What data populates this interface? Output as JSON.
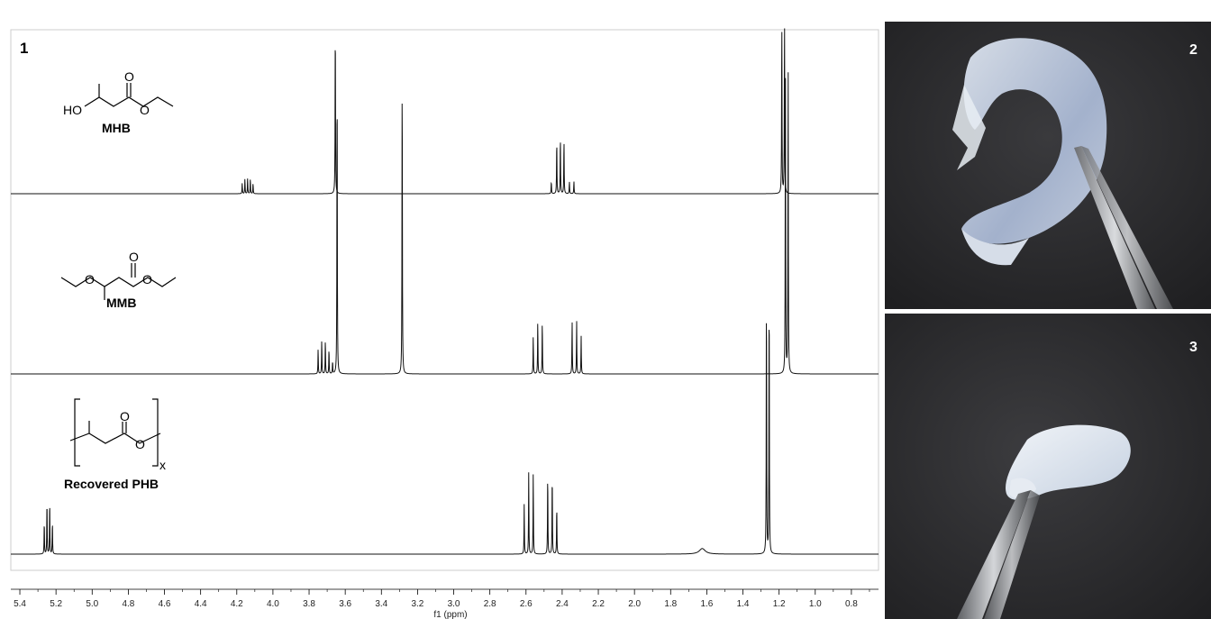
{
  "panel_labels": {
    "spectra": "1",
    "photo_top": "2",
    "photo_bottom": "3"
  },
  "structures": {
    "mhb": {
      "name": "MHB",
      "atoms": [
        "HO",
        "O",
        "O"
      ]
    },
    "mmb": {
      "name": "MMB",
      "atoms": [
        "O",
        "O",
        "O"
      ]
    },
    "phb": {
      "name": "Recovered PHB",
      "atoms": [
        "O",
        "O"
      ],
      "subscript": "x"
    }
  },
  "chart_data": {
    "type": "line",
    "xlabel": "f1 (ppm)",
    "xlim": [
      5.45,
      0.65
    ],
    "x_reversed": true,
    "ticks": [
      "5.4",
      "5.2",
      "5.0",
      "4.8",
      "4.6",
      "4.4",
      "4.2",
      "4.0",
      "3.8",
      "3.6",
      "3.4",
      "3.2",
      "3.0",
      "2.8",
      "2.6",
      "2.4",
      "2.2",
      "2.0",
      "1.8",
      "1.6",
      "1.4",
      "1.2",
      "1.0",
      "0.8"
    ],
    "tick_values": [
      5.4,
      5.2,
      5.0,
      4.8,
      4.6,
      4.4,
      4.2,
      4.0,
      3.8,
      3.6,
      3.4,
      3.2,
      3.0,
      2.8,
      2.6,
      2.4,
      2.2,
      2.0,
      1.8,
      1.6,
      1.4,
      1.2,
      1.0,
      0.8
    ],
    "series": [
      {
        "name": "MHB",
        "peaks": [
          {
            "ppm": 4.17,
            "h": 0.06
          },
          {
            "ppm": 4.155,
            "h": 0.085
          },
          {
            "ppm": 4.14,
            "h": 0.09
          },
          {
            "ppm": 4.125,
            "h": 0.085
          },
          {
            "ppm": 4.11,
            "h": 0.06
          },
          {
            "ppm": 3.655,
            "h": 1.0
          },
          {
            "ppm": 2.46,
            "h": 0.07
          },
          {
            "ppm": 2.43,
            "h": 0.31
          },
          {
            "ppm": 2.41,
            "h": 0.33
          },
          {
            "ppm": 2.39,
            "h": 0.31
          },
          {
            "ppm": 2.36,
            "h": 0.07
          },
          {
            "ppm": 2.335,
            "h": 0.07
          },
          {
            "ppm": 1.185,
            "h": 1.0
          },
          {
            "ppm": 1.17,
            "h": 1.0
          }
        ]
      },
      {
        "name": "MMB",
        "peaks": [
          {
            "ppm": 3.75,
            "h": 0.08
          },
          {
            "ppm": 3.73,
            "h": 0.11
          },
          {
            "ppm": 3.71,
            "h": 0.11
          },
          {
            "ppm": 3.69,
            "h": 0.08
          },
          {
            "ppm": 3.67,
            "h": 0.04
          },
          {
            "ppm": 3.645,
            "h": 1.0
          },
          {
            "ppm": 3.285,
            "h": 1.0
          },
          {
            "ppm": 2.56,
            "h": 0.12
          },
          {
            "ppm": 2.535,
            "h": 0.17
          },
          {
            "ppm": 2.51,
            "h": 0.17
          },
          {
            "ppm": 2.345,
            "h": 0.17
          },
          {
            "ppm": 2.32,
            "h": 0.17
          },
          {
            "ppm": 2.295,
            "h": 0.12
          },
          {
            "ppm": 1.165,
            "h": 1.0
          },
          {
            "ppm": 1.15,
            "h": 1.0
          }
        ]
      },
      {
        "name": "Recovered PHB",
        "peaks": [
          {
            "ppm": 5.265,
            "h": 0.12
          },
          {
            "ppm": 5.25,
            "h": 0.2
          },
          {
            "ppm": 5.235,
            "h": 0.2
          },
          {
            "ppm": 5.22,
            "h": 0.12
          },
          {
            "ppm": 2.61,
            "h": 0.18
          },
          {
            "ppm": 2.585,
            "h": 0.3
          },
          {
            "ppm": 2.56,
            "h": 0.3
          },
          {
            "ppm": 2.48,
            "h": 0.3
          },
          {
            "ppm": 2.455,
            "h": 0.3
          },
          {
            "ppm": 2.43,
            "h": 0.18
          },
          {
            "ppm": 1.625,
            "h": 0.02
          },
          {
            "ppm": 1.27,
            "h": 1.0
          },
          {
            "ppm": 1.255,
            "h": 1.0
          }
        ]
      }
    ]
  },
  "colors": {
    "trace": "#111111",
    "frame": "#cccccc",
    "photo_bg": "#2b2b2d"
  }
}
